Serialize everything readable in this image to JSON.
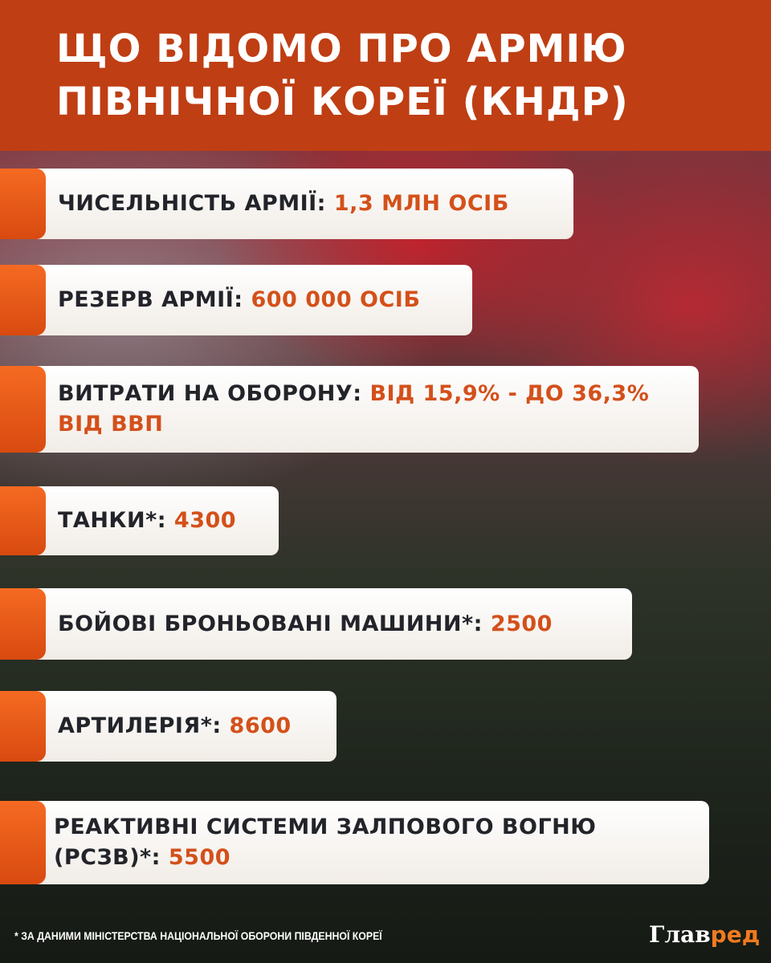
{
  "title": "ЩО ВІДОМО ПРО АРМІЮ ПІВНІЧНОЇ КОРЕЇ (КНДР)",
  "colors": {
    "header": "#bf3e14",
    "accent": "#d4501a",
    "tab": "#f56a22"
  },
  "items": [
    {
      "label": "ЧИСЕЛЬНІСТЬ АРМІЇ:",
      "value": "1,3 МЛН ОСІБ"
    },
    {
      "label": "РЕЗЕРВ АРМІЇ:",
      "value": "600 000 ОСІБ"
    },
    {
      "label": "ВИТРАТИ НА ОБОРОНУ:",
      "value": "ВІД 15,9% - ДО 36,3% ВІД ВВП"
    },
    {
      "label": "ТАНКИ*:",
      "value": "4300"
    },
    {
      "label": "БОЙОВІ БРОНЬОВАНІ МАШИНИ*:",
      "value": "2500"
    },
    {
      "label": "АРТИЛЕРІЯ*:",
      "value": "8600"
    },
    {
      "label": "РЕАКТИВНІ СИСТЕМИ ЗАЛПОВОГО ВОГНЮ (РСЗВ)*:",
      "value": "5500"
    }
  ],
  "footnote": "* ЗА ДАНИМИ МІНІСТЕРСТВА НАЦІОНАЛЬНОЇ ОБОРОНИ ПІВДЕННОЇ КОРЕЇ",
  "logo": {
    "part1": "Глав",
    "part2": "ред"
  }
}
